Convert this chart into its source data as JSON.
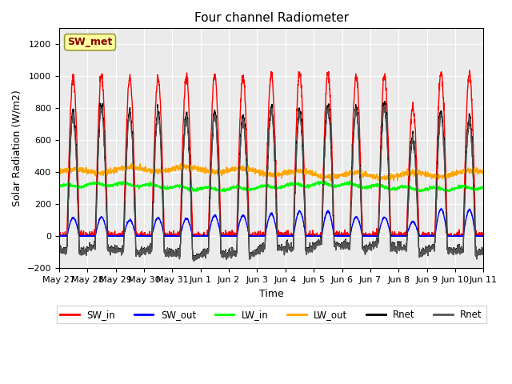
{
  "title": "Four channel Radiometer",
  "xlabel": "Time",
  "ylabel": "Solar Radiation (W/m2)",
  "ylim": [
    -200,
    1300
  ],
  "yticks": [
    -200,
    0,
    200,
    400,
    600,
    800,
    1000,
    1200
  ],
  "annotation": "SW_met",
  "annotation_color": "#8B0000",
  "annotation_bg": "#FFFFA0",
  "colors": {
    "SW_in": "#FF0000",
    "SW_out": "#0000FF",
    "LW_in": "#00FF00",
    "LW_out": "#FFA500",
    "Rnet1": "#000000",
    "Rnet2": "#555555"
  },
  "legend_labels": [
    "SW_in",
    "SW_out",
    "LW_in",
    "LW_out",
    "Rnet",
    "Rnet"
  ],
  "legend_colors": [
    "#FF0000",
    "#0000FF",
    "#00FF00",
    "#FFA500",
    "#000000",
    "#555555"
  ],
  "xticklabels": [
    "May 27",
    "May 28",
    "May 29",
    "May 30",
    "May 31",
    "Jun 1",
    "Jun 2",
    "Jun 3",
    "Jun 4",
    "Jun 5",
    "Jun 6",
    "Jun 7",
    "Jun 8",
    "Jun 9",
    "Jun 10",
    "Jun 11"
  ],
  "xtick_positions": [
    0,
    1,
    2,
    3,
    4,
    5,
    6,
    7,
    8,
    9,
    10,
    11,
    12,
    13,
    14,
    15
  ],
  "xlim": [
    0,
    15
  ],
  "plot_bg": "#EBEBEB",
  "fig_bg": "#FFFFFF",
  "n_days": 15,
  "pts_per_day": 144
}
